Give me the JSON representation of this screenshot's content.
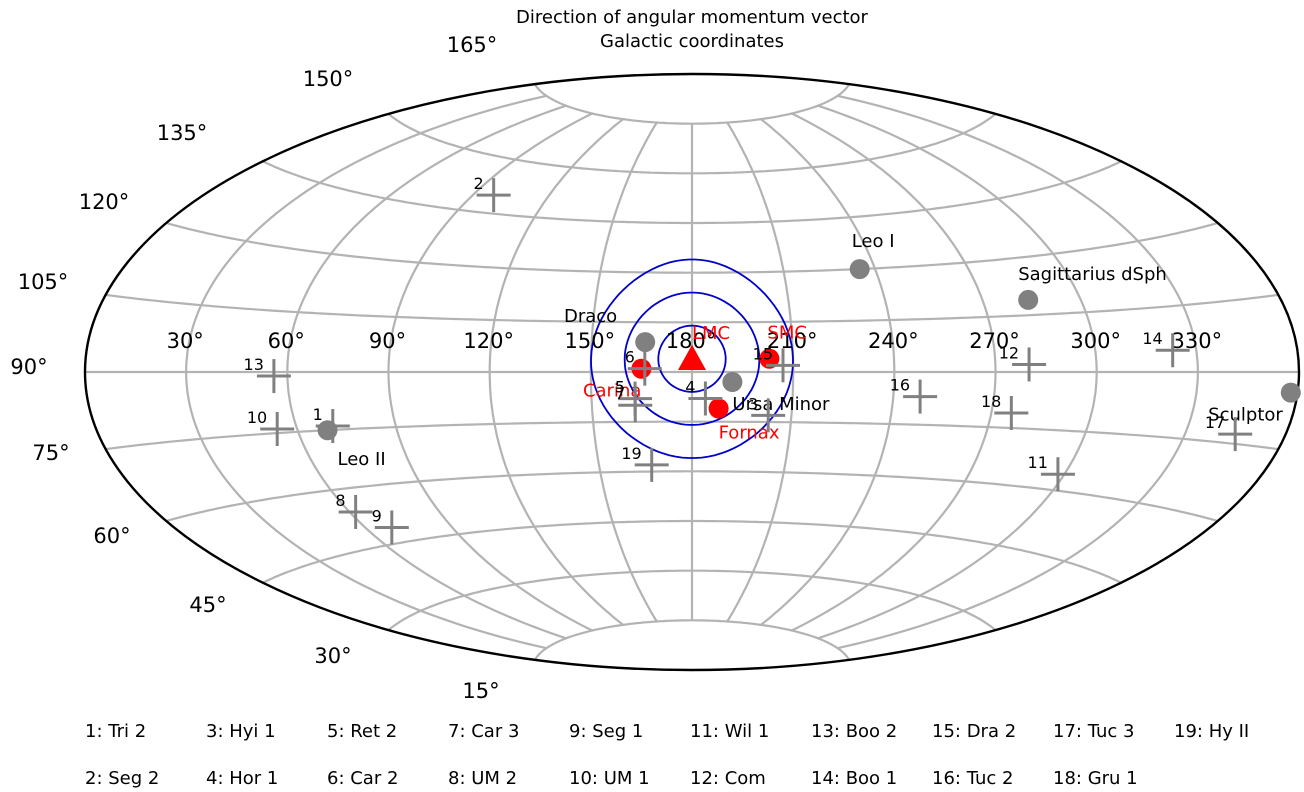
{
  "chart_data": {
    "type": "scatter",
    "projection": "aitoff",
    "title": "Direction of angular momentum vector",
    "subtitle": "Galactic coordinates",
    "x_tick_labels": [
      "30°",
      "60°",
      "90°",
      "120°",
      "150°",
      "180°",
      "210°",
      "240°",
      "270°",
      "300°",
      "330°"
    ],
    "y_tick_labels": [
      "15°",
      "30°",
      "45°",
      "60°",
      "75°",
      "90°",
      "105°",
      "120°",
      "135°",
      "150°",
      "165°"
    ],
    "grid": true,
    "colors": {
      "classical": "#808080",
      "magellanic": "#ff0000",
      "ufd": "#808080",
      "contour": "#0000cc",
      "grid": "#b3b3b3"
    },
    "classical_dwarfs": [
      {
        "name": "Leo I",
        "lon": 235,
        "lat": 120
      },
      {
        "name": "Sagittarius dSph",
        "lon": 284,
        "lat": 109
      },
      {
        "name": "Draco",
        "lon": 166,
        "lat": 99
      },
      {
        "name": "Ursa Minor",
        "lon": 192,
        "lat": 87
      },
      {
        "name": "Sculptor",
        "lon": 358,
        "lat": 86
      },
      {
        "name": "Leo II",
        "lon": 69,
        "lat": 75
      }
    ],
    "magellanic": [
      {
        "name": "LMC",
        "lon": 180,
        "lat": 94,
        "marker": "triangle"
      },
      {
        "name": "SMC",
        "lon": 203,
        "lat": 94,
        "marker": "circle"
      },
      {
        "name": "Carina",
        "lon": 165,
        "lat": 91,
        "marker": "circle"
      },
      {
        "name": "Fornax",
        "lon": 188,
        "lat": 79,
        "marker": "circle"
      }
    ],
    "ultra_faint": [
      {
        "id": "1",
        "lon": 71,
        "lat": 76
      },
      {
        "id": "2",
        "lon": 98,
        "lat": 140
      },
      {
        "id": "3",
        "lon": 203,
        "lat": 77
      },
      {
        "id": "4",
        "lon": 184,
        "lat": 82
      },
      {
        "id": "5",
        "lon": 163,
        "lat": 82
      },
      {
        "id": "6",
        "lon": 166,
        "lat": 91
      },
      {
        "id": "7",
        "lon": 163,
        "lat": 80
      },
      {
        "id": "8",
        "lon": 62,
        "lat": 54
      },
      {
        "id": "9",
        "lon": 69,
        "lat": 49
      },
      {
        "id": "10",
        "lon": 54,
        "lat": 76
      },
      {
        "id": "11",
        "lon": 298,
        "lat": 64
      },
      {
        "id": "12",
        "lon": 280,
        "lat": 92
      },
      {
        "id": "13",
        "lon": 56,
        "lat": 89
      },
      {
        "id": "14",
        "lon": 323,
        "lat": 95
      },
      {
        "id": "15",
        "lon": 207,
        "lat": 92
      },
      {
        "id": "16",
        "lon": 248,
        "lat": 83
      },
      {
        "id": "17",
        "lon": 345,
        "lat": 77
      },
      {
        "id": "18",
        "lon": 276,
        "lat": 79
      },
      {
        "id": "19",
        "lon": 167,
        "lat": 62
      }
    ],
    "contours_deg": [
      10,
      20,
      30
    ]
  },
  "legend": [
    "1: Tri 2",
    "3: Hyi 1",
    "5: Ret 2",
    "7: Car 3",
    "9: Seg 1",
    "11: Wil 1",
    "13: Boo 2",
    "15: Dra 2",
    "17: Tuc 3",
    "19: Hy II",
    "2: Seg 2",
    "4: Hor 1",
    "6: Car 2",
    "8: UM 2",
    "10: UM 1",
    "12: Com",
    "14: Boo 1",
    "16: Tuc 2",
    "18: Gru 1"
  ]
}
